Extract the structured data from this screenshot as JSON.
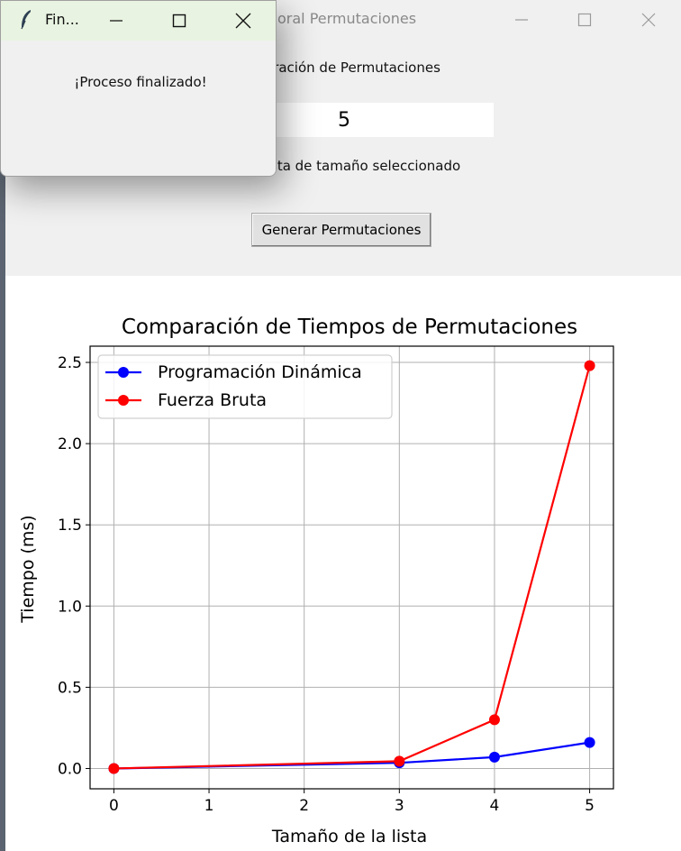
{
  "main_window": {
    "title": "oral Permutaciones",
    "heading": "aración de Permutaciones",
    "input_value": "5",
    "hint": "sta de tamaño seleccionado",
    "generate_label": "Generar Permutaciones"
  },
  "popup": {
    "title": "Fin...",
    "message": "¡Proceso finalizado!"
  },
  "icons": [
    "feather-icon",
    "minimize-icon",
    "maximize-icon",
    "close-icon"
  ],
  "chart_data": {
    "type": "line",
    "title": "Comparación de Tiempos de Permutaciones",
    "xlabel": "Tamaño de la lista",
    "ylabel": "Tiempo (ms)",
    "xlim": [
      -0.25,
      5.25
    ],
    "ylim": [
      -0.125,
      2.6
    ],
    "xticks": [
      0,
      1,
      2,
      3,
      4,
      5
    ],
    "yticks": [
      0.0,
      0.5,
      1.0,
      1.5,
      2.0,
      2.5
    ],
    "xtick_labels": [
      "0",
      "1",
      "2",
      "3",
      "4",
      "5"
    ],
    "ytick_labels": [
      "0.0",
      "0.5",
      "1.0",
      "1.5",
      "2.0",
      "2.5"
    ],
    "grid": true,
    "legend_position": "upper-left",
    "series": [
      {
        "name": "Programación Dinámica",
        "color": "#0000ff",
        "x": [
          0,
          3,
          4,
          5
        ],
        "y": [
          0.0,
          0.035,
          0.07,
          0.16
        ]
      },
      {
        "name": "Fuerza Bruta",
        "color": "#ff0000",
        "x": [
          0,
          3,
          4,
          5
        ],
        "y": [
          0.0,
          0.045,
          0.3,
          2.48
        ]
      }
    ]
  }
}
